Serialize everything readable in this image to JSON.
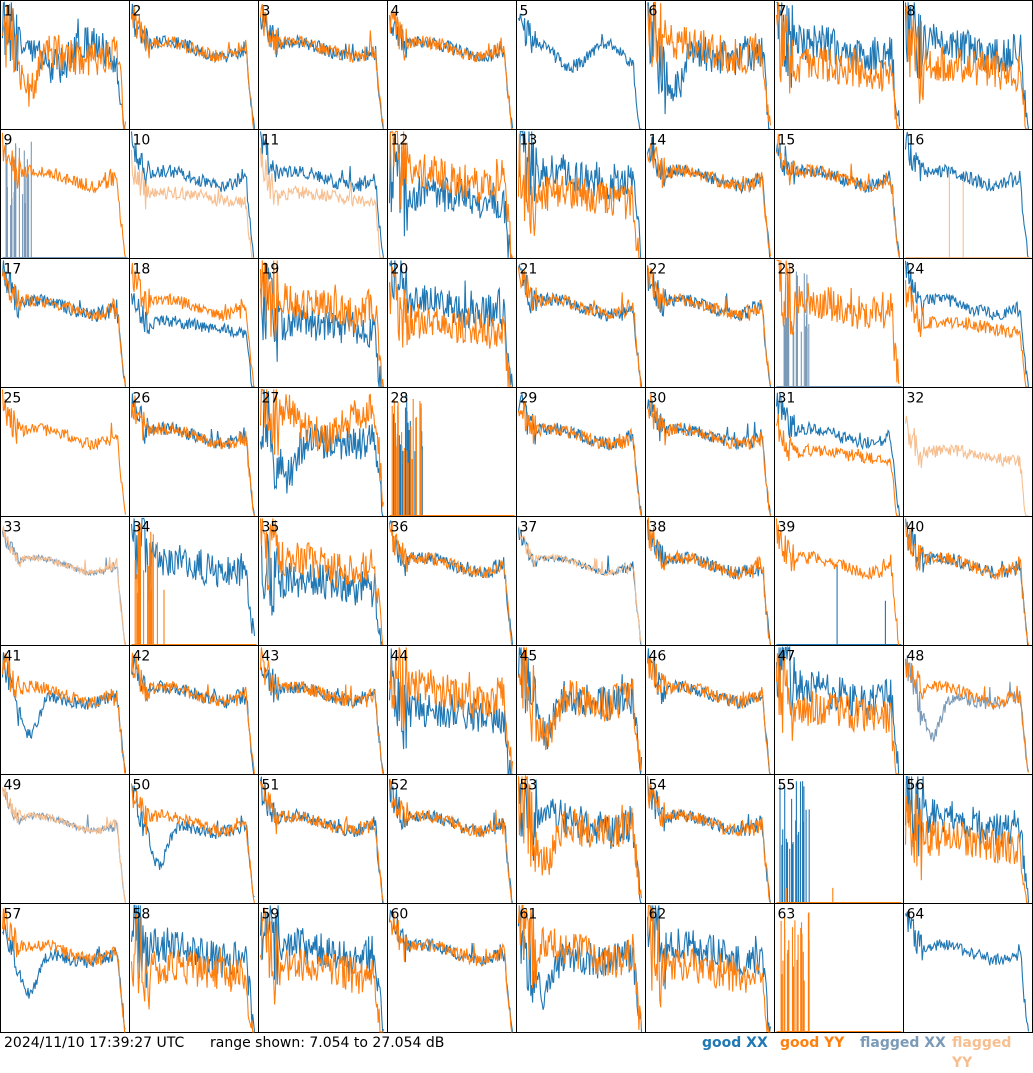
{
  "footer": {
    "timestamp": "2024/11/10 17:39:27 UTC",
    "range_text": "range shown: 7.054 to 27.054 dB",
    "legend": [
      {
        "label": "good XX",
        "color": "#1f77b4"
      },
      {
        "label": "good YY",
        "color": "#ff7f0e"
      },
      {
        "label": "flagged XX",
        "color": "#7a9ab8"
      },
      {
        "label": "flagged YY",
        "color": "#f7bf90"
      }
    ]
  },
  "chart_data": {
    "type": "line",
    "panel_count": 64,
    "ylim_db": [
      7.054,
      27.054
    ],
    "series_names": [
      "good XX",
      "good YY",
      "flagged XX",
      "flagged YY"
    ],
    "panels": [
      {
        "id": "1",
        "xx": "good",
        "yy": "good",
        "xxShape": "bumpy",
        "yyShape": "dip",
        "noise": "heavy"
      },
      {
        "id": "2",
        "xx": "good",
        "yy": "good",
        "xxShape": "flat",
        "yyShape": "flat",
        "noise": "mid"
      },
      {
        "id": "3",
        "xx": "good",
        "yy": "good",
        "xxShape": "flat",
        "yyShape": "flat",
        "noise": "mid"
      },
      {
        "id": "4",
        "xx": "good",
        "yy": "good",
        "xxShape": "flat",
        "yyShape": "flat",
        "noise": "mid"
      },
      {
        "id": "5",
        "xx": "good",
        "yy": "flagged",
        "xxShape": "bumpy",
        "yyShape": "none",
        "noise": "mid"
      },
      {
        "id": "6",
        "xx": "good",
        "yy": "good",
        "xxShape": "dip",
        "yyShape": "flat",
        "noise": "heavy"
      },
      {
        "id": "7",
        "xx": "good",
        "yy": "good",
        "xxShape": "flat",
        "yyShape": "low",
        "noise": "heavy"
      },
      {
        "id": "8",
        "xx": "good",
        "yy": "good",
        "xxShape": "flat",
        "yyShape": "low",
        "noise": "heavy"
      },
      {
        "id": "9",
        "xx": "flagged",
        "yy": "good",
        "xxShape": "spikes",
        "yyShape": "flat",
        "noise": "mid"
      },
      {
        "id": "10",
        "xx": "good",
        "yy": "flagged",
        "xxShape": "flat",
        "yyShape": "low",
        "noise": "mid"
      },
      {
        "id": "11",
        "xx": "good",
        "yy": "flagged",
        "xxShape": "flat",
        "yyShape": "low",
        "noise": "mid"
      },
      {
        "id": "12",
        "xx": "good",
        "yy": "good",
        "xxShape": "low",
        "yyShape": "flat",
        "noise": "heavy"
      },
      {
        "id": "13",
        "xx": "good",
        "yy": "good",
        "xxShape": "flat",
        "yyShape": "low",
        "noise": "heavy"
      },
      {
        "id": "14",
        "xx": "good",
        "yy": "good",
        "xxShape": "flat",
        "yyShape": "flat",
        "noise": "mid"
      },
      {
        "id": "15",
        "xx": "good",
        "yy": "good",
        "xxShape": "flat",
        "yyShape": "flat",
        "noise": "mid"
      },
      {
        "id": "16",
        "xx": "good",
        "yy": "flagged",
        "xxShape": "flat",
        "yyShape": "spike1",
        "noise": "mid"
      },
      {
        "id": "17",
        "xx": "good",
        "yy": "good",
        "xxShape": "flat",
        "yyShape": "flat",
        "noise": "mid"
      },
      {
        "id": "18",
        "xx": "good",
        "yy": "good",
        "xxShape": "low",
        "yyShape": "flat",
        "noise": "mid"
      },
      {
        "id": "19",
        "xx": "good",
        "yy": "good",
        "xxShape": "low",
        "yyShape": "flat",
        "noise": "heavy"
      },
      {
        "id": "20",
        "xx": "good",
        "yy": "good",
        "xxShape": "flat",
        "yyShape": "low",
        "noise": "heavy"
      },
      {
        "id": "21",
        "xx": "good",
        "yy": "good",
        "xxShape": "flat",
        "yyShape": "flat",
        "noise": "mid"
      },
      {
        "id": "22",
        "xx": "good",
        "yy": "good",
        "xxShape": "flat",
        "yyShape": "flat",
        "noise": "mid"
      },
      {
        "id": "23",
        "xx": "flagged",
        "yy": "good",
        "xxShape": "spikes",
        "yyShape": "flat",
        "noise": "heavy"
      },
      {
        "id": "24",
        "xx": "good",
        "yy": "good",
        "xxShape": "flat",
        "yyShape": "low",
        "noise": "mid"
      },
      {
        "id": "25",
        "xx": "none",
        "yy": "good",
        "xxShape": "none",
        "yyShape": "flat",
        "noise": "mid"
      },
      {
        "id": "26",
        "xx": "good",
        "yy": "good",
        "xxShape": "flat",
        "yyShape": "flat",
        "noise": "mid"
      },
      {
        "id": "27",
        "xx": "good",
        "yy": "good",
        "xxShape": "dip",
        "yyShape": "high",
        "noise": "heavy"
      },
      {
        "id": "28",
        "xx": "good",
        "yy": "good",
        "xxShape": "spikes",
        "yyShape": "spikes",
        "noise": "heavy"
      },
      {
        "id": "29",
        "xx": "good",
        "yy": "good",
        "xxShape": "flat",
        "yyShape": "flat",
        "noise": "mid"
      },
      {
        "id": "30",
        "xx": "good",
        "yy": "good",
        "xxShape": "flat",
        "yyShape": "flat",
        "noise": "mid"
      },
      {
        "id": "31",
        "xx": "good",
        "yy": "good",
        "xxShape": "flat",
        "yyShape": "low",
        "noise": "mid"
      },
      {
        "id": "32",
        "xx": "flagged",
        "yy": "flagged",
        "xxShape": "none",
        "yyShape": "low",
        "noise": "mid"
      },
      {
        "id": "33",
        "xx": "flagged",
        "yy": "flagged",
        "xxShape": "flat",
        "yyShape": "flat",
        "noise": "light"
      },
      {
        "id": "34",
        "xx": "good",
        "yy": "good",
        "xxShape": "flat",
        "yyShape": "spikes",
        "noise": "heavy"
      },
      {
        "id": "35",
        "xx": "good",
        "yy": "good",
        "xxShape": "low",
        "yyShape": "flat",
        "noise": "heavy"
      },
      {
        "id": "36",
        "xx": "good",
        "yy": "good",
        "xxShape": "flat",
        "yyShape": "flat",
        "noise": "mid"
      },
      {
        "id": "37",
        "xx": "good",
        "yy": "flagged",
        "xxShape": "flat",
        "yyShape": "flat",
        "noise": "light"
      },
      {
        "id": "38",
        "xx": "good",
        "yy": "good",
        "xxShape": "flat",
        "yyShape": "flat",
        "noise": "mid"
      },
      {
        "id": "39",
        "xx": "good",
        "yy": "good",
        "xxShape": "spike1",
        "yyShape": "flat",
        "noise": "mid"
      },
      {
        "id": "40",
        "xx": "good",
        "yy": "good",
        "xxShape": "flat",
        "yyShape": "flat",
        "noise": "mid"
      },
      {
        "id": "41",
        "xx": "good",
        "yy": "good",
        "xxShape": "dip",
        "yyShape": "flat",
        "noise": "mid"
      },
      {
        "id": "42",
        "xx": "good",
        "yy": "good",
        "xxShape": "flat",
        "yyShape": "flat",
        "noise": "mid"
      },
      {
        "id": "43",
        "xx": "good",
        "yy": "good",
        "xxShape": "flat",
        "yyShape": "flat",
        "noise": "mid"
      },
      {
        "id": "44",
        "xx": "good",
        "yy": "good",
        "xxShape": "low",
        "yyShape": "flat",
        "noise": "heavy"
      },
      {
        "id": "45",
        "xx": "good",
        "yy": "good",
        "xxShape": "dip",
        "yyShape": "dip",
        "noise": "heavy"
      },
      {
        "id": "46",
        "xx": "good",
        "yy": "good",
        "xxShape": "flat",
        "yyShape": "flat",
        "noise": "mid"
      },
      {
        "id": "47",
        "xx": "good",
        "yy": "good",
        "xxShape": "flat",
        "yyShape": "low",
        "noise": "heavy"
      },
      {
        "id": "48",
        "xx": "flagged",
        "yy": "good",
        "xxShape": "dip",
        "yyShape": "flat",
        "noise": "mid"
      },
      {
        "id": "49",
        "xx": "flagged",
        "yy": "flagged",
        "xxShape": "flat",
        "yyShape": "flat",
        "noise": "light"
      },
      {
        "id": "50",
        "xx": "good",
        "yy": "good",
        "xxShape": "dip",
        "yyShape": "flat",
        "noise": "mid"
      },
      {
        "id": "51",
        "xx": "good",
        "yy": "good",
        "xxShape": "flat",
        "yyShape": "flat",
        "noise": "mid"
      },
      {
        "id": "52",
        "xx": "good",
        "yy": "good",
        "xxShape": "flat",
        "yyShape": "flat",
        "noise": "mid"
      },
      {
        "id": "53",
        "xx": "good",
        "yy": "good",
        "xxShape": "flat",
        "yyShape": "dip",
        "noise": "heavy"
      },
      {
        "id": "54",
        "xx": "good",
        "yy": "good",
        "xxShape": "flat",
        "yyShape": "flat",
        "noise": "mid"
      },
      {
        "id": "55",
        "xx": "good",
        "yy": "good",
        "xxShape": "spikes",
        "yyShape": "spike1",
        "noise": "heavy"
      },
      {
        "id": "56",
        "xx": "good",
        "yy": "good",
        "xxShape": "flat",
        "yyShape": "low",
        "noise": "heavy"
      },
      {
        "id": "57",
        "xx": "good",
        "yy": "good",
        "xxShape": "dip",
        "yyShape": "flat",
        "noise": "mid"
      },
      {
        "id": "58",
        "xx": "good",
        "yy": "good",
        "xxShape": "flat",
        "yyShape": "low",
        "noise": "heavy"
      },
      {
        "id": "59",
        "xx": "good",
        "yy": "good",
        "xxShape": "flat",
        "yyShape": "low",
        "noise": "heavy"
      },
      {
        "id": "60",
        "xx": "good",
        "yy": "good",
        "xxShape": "flat",
        "yyShape": "flat",
        "noise": "mid"
      },
      {
        "id": "61",
        "xx": "good",
        "yy": "good",
        "xxShape": "dip",
        "yyShape": "flat",
        "noise": "heavy"
      },
      {
        "id": "62",
        "xx": "good",
        "yy": "good",
        "xxShape": "flat",
        "yyShape": "low",
        "noise": "heavy"
      },
      {
        "id": "63",
        "xx": "none",
        "yy": "good",
        "xxShape": "none",
        "yyShape": "spikes",
        "noise": "heavy"
      },
      {
        "id": "64",
        "xx": "good",
        "yy": "none",
        "xxShape": "flat",
        "yyShape": "none",
        "noise": "mid"
      }
    ]
  }
}
